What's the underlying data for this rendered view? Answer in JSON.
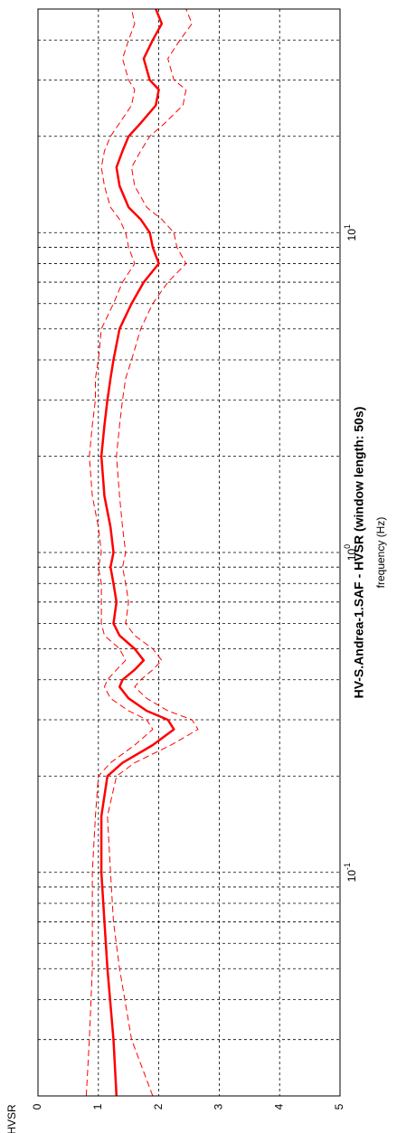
{
  "chart_data": {
    "type": "line",
    "title": "HV-S.Andrea-1.SAF - HVSR (window length: 50s)",
    "xlabel": "frequency (Hz)",
    "ylabel": "HVSR",
    "xscale": "log",
    "xlim": [
      0.02,
      50
    ],
    "ylim": [
      0,
      5
    ],
    "grid": true,
    "x_ticks": [
      {
        "value": 0.1,
        "base": "10",
        "exp": "-1"
      },
      {
        "value": 1,
        "base": "10",
        "exp": "0"
      },
      {
        "value": 10,
        "base": "10",
        "exp": "1"
      }
    ],
    "y_ticks": [
      "0",
      "1",
      "2",
      "3",
      "4",
      "5"
    ],
    "color": "#ff0000",
    "series": [
      {
        "style": "solid-thick",
        "x": [
          0.02,
          0.03,
          0.05,
          0.07,
          0.1,
          0.15,
          0.2,
          0.22,
          0.25,
          0.28,
          0.3,
          0.32,
          0.35,
          0.38,
          0.4,
          0.43,
          0.46,
          0.5,
          0.55,
          0.6,
          0.7,
          0.8,
          0.9,
          1.0,
          1.2,
          1.5,
          2,
          2.5,
          3,
          3.5,
          4,
          5,
          6,
          7,
          8,
          9,
          10,
          11,
          12,
          14,
          16,
          18,
          20,
          22,
          25,
          28,
          30,
          35,
          40,
          45,
          50
        ],
        "y": [
          1.3,
          1.25,
          1.15,
          1.1,
          1.05,
          1.05,
          1.15,
          1.4,
          1.9,
          2.25,
          2.15,
          1.8,
          1.5,
          1.35,
          1.4,
          1.6,
          1.75,
          1.6,
          1.35,
          1.25,
          1.3,
          1.25,
          1.2,
          1.25,
          1.2,
          1.1,
          1.05,
          1.1,
          1.15,
          1.2,
          1.25,
          1.35,
          1.55,
          1.75,
          2.0,
          1.9,
          1.85,
          1.7,
          1.5,
          1.35,
          1.3,
          1.4,
          1.5,
          1.7,
          1.95,
          2.0,
          1.85,
          1.75,
          1.9,
          2.05,
          1.95
        ]
      },
      {
        "style": "dashed",
        "x": [
          0.02,
          0.03,
          0.05,
          0.07,
          0.1,
          0.15,
          0.2,
          0.22,
          0.25,
          0.28,
          0.3,
          0.32,
          0.35,
          0.38,
          0.4,
          0.43,
          0.46,
          0.5,
          0.55,
          0.6,
          0.7,
          0.8,
          0.9,
          1.0,
          1.2,
          1.5,
          2,
          2.5,
          3,
          3.5,
          4,
          5,
          6,
          7,
          8,
          9,
          10,
          11,
          12,
          14,
          16,
          18,
          20,
          22,
          25,
          28,
          30,
          35,
          40,
          45,
          50
        ],
        "y": [
          1.9,
          1.55,
          1.35,
          1.25,
          1.2,
          1.15,
          1.3,
          1.6,
          2.2,
          2.65,
          2.55,
          2.15,
          1.8,
          1.6,
          1.7,
          1.9,
          2.05,
          1.9,
          1.6,
          1.45,
          1.5,
          1.45,
          1.4,
          1.45,
          1.4,
          1.35,
          1.3,
          1.35,
          1.4,
          1.45,
          1.55,
          1.7,
          1.9,
          2.15,
          2.45,
          2.3,
          2.25,
          2.05,
          1.8,
          1.6,
          1.55,
          1.7,
          1.85,
          2.1,
          2.4,
          2.45,
          2.25,
          2.15,
          2.35,
          2.55,
          2.45
        ]
      },
      {
        "style": "dashed",
        "x": [
          0.02,
          0.03,
          0.05,
          0.07,
          0.1,
          0.15,
          0.2,
          0.22,
          0.25,
          0.28,
          0.3,
          0.32,
          0.35,
          0.38,
          0.4,
          0.43,
          0.46,
          0.5,
          0.55,
          0.6,
          0.7,
          0.8,
          0.9,
          1.0,
          1.2,
          1.5,
          2,
          2.5,
          3,
          3.5,
          4,
          5,
          6,
          7,
          8,
          9,
          10,
          11,
          12,
          14,
          16,
          18,
          20,
          22,
          25,
          28,
          30,
          35,
          40,
          45,
          50
        ],
        "y": [
          0.8,
          0.85,
          0.9,
          0.9,
          0.9,
          0.95,
          1.0,
          1.2,
          1.6,
          1.9,
          1.8,
          1.5,
          1.2,
          1.1,
          1.15,
          1.3,
          1.45,
          1.35,
          1.1,
          1.05,
          1.05,
          1.05,
          1.0,
          1.05,
          1.0,
          0.9,
          0.85,
          0.9,
          0.95,
          0.95,
          1.0,
          1.05,
          1.25,
          1.4,
          1.6,
          1.5,
          1.45,
          1.35,
          1.2,
          1.1,
          1.05,
          1.1,
          1.2,
          1.35,
          1.55,
          1.6,
          1.5,
          1.4,
          1.5,
          1.6,
          1.55
        ]
      }
    ]
  }
}
